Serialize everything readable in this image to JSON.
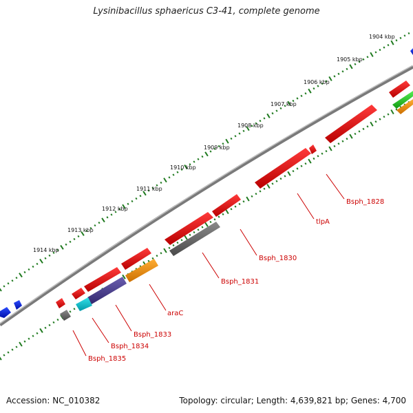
{
  "title": "Lysinibacillus sphaericus C3-41, complete genome",
  "accession_text": "Accession: NC_010382",
  "topology_text": "Topology: circular; Length: 4,639,821 bp; Genes: 4,700",
  "colors": {
    "backbone": "#7a7a7a",
    "ticks": "#1f7a1f",
    "forward_gene": "#ee0000",
    "label_red": "#cc0000"
  },
  "scale_labels": [
    "1904 kbp",
    "1905 kbp",
    "1906 kbp",
    "1907 kbp",
    "1908 kbp",
    "1909 kbp",
    "1910 kbp",
    "1911 kbp",
    "1912 kbp",
    "1913 kbp",
    "1914 kbp"
  ],
  "gene_labels": [
    "Bsph_1828",
    "tlpA",
    "Bsph_1830",
    "Bsph_1831",
    "araC",
    "Bsph_1833",
    "Bsph_1834",
    "Bsph_1835"
  ]
}
